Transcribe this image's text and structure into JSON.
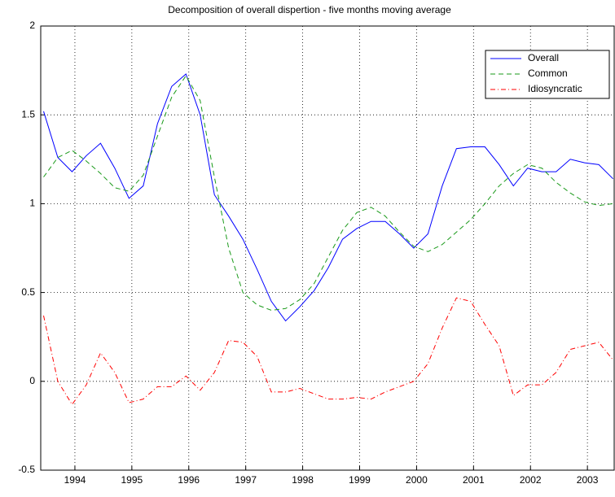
{
  "chart_data": {
    "type": "line",
    "title": "Decomposition of overall dispertion - five months moving average",
    "x": [
      1993.45,
      1993.7,
      1993.95,
      1994.2,
      1994.45,
      1994.7,
      1994.95,
      1995.2,
      1995.45,
      1995.7,
      1995.95,
      1996.2,
      1996.45,
      1996.7,
      1996.95,
      1997.2,
      1997.45,
      1997.7,
      1997.95,
      1998.2,
      1998.45,
      1998.7,
      1998.95,
      1999.2,
      1999.45,
      1999.7,
      1999.95,
      2000.2,
      2000.45,
      2000.7,
      2000.95,
      2001.2,
      2001.45,
      2001.7,
      2001.95,
      2002.2,
      2002.45,
      2002.7,
      2002.95,
      2003.2,
      2003.45
    ],
    "series": [
      {
        "name": "Overall",
        "color": "#0000ff",
        "dash": "none",
        "values": [
          1.52,
          1.26,
          1.18,
          1.27,
          1.34,
          1.2,
          1.03,
          1.1,
          1.45,
          1.66,
          1.73,
          1.5,
          1.05,
          0.93,
          0.8,
          0.63,
          0.45,
          0.34,
          0.42,
          0.51,
          0.64,
          0.8,
          0.86,
          0.9,
          0.9,
          0.83,
          0.75,
          0.83,
          1.1,
          1.31,
          1.32,
          1.32,
          1.22,
          1.1,
          1.2,
          1.18,
          1.18,
          1.25,
          1.23,
          1.22,
          1.14
        ]
      },
      {
        "name": "Common",
        "color": "#1a9a1a",
        "dash": "6 4",
        "values": [
          1.15,
          1.26,
          1.3,
          1.24,
          1.17,
          1.09,
          1.07,
          1.16,
          1.38,
          1.6,
          1.72,
          1.58,
          1.15,
          0.75,
          0.5,
          0.43,
          0.4,
          0.41,
          0.46,
          0.55,
          0.7,
          0.85,
          0.95,
          0.98,
          0.93,
          0.84,
          0.76,
          0.73,
          0.77,
          0.84,
          0.91,
          1.0,
          1.1,
          1.17,
          1.22,
          1.2,
          1.12,
          1.06,
          1.01,
          0.99,
          1.0
        ]
      },
      {
        "name": "Idiosyncratic",
        "color": "#ff0000",
        "dash": "6 3 1 3",
        "values": [
          0.37,
          0.0,
          -0.13,
          -0.02,
          0.16,
          0.05,
          -0.12,
          -0.1,
          -0.03,
          -0.03,
          0.03,
          -0.05,
          0.05,
          0.23,
          0.22,
          0.14,
          -0.06,
          -0.06,
          -0.04,
          -0.07,
          -0.1,
          -0.1,
          -0.09,
          -0.1,
          -0.06,
          -0.03,
          0.0,
          0.1,
          0.3,
          0.47,
          0.45,
          0.32,
          0.2,
          -0.08,
          -0.02,
          -0.02,
          0.05,
          0.18,
          0.2,
          0.22,
          0.12
        ]
      }
    ],
    "xlim": [
      1993.4,
      2003.47
    ],
    "xticks": [
      1994,
      1995,
      1996,
      1997,
      1998,
      1999,
      2000,
      2001,
      2002,
      2003
    ],
    "ylim": [
      -0.5,
      2
    ],
    "yticks": [
      -0.5,
      0,
      0.5,
      1,
      1.5,
      2
    ],
    "grid": true,
    "legend": "upper right"
  }
}
